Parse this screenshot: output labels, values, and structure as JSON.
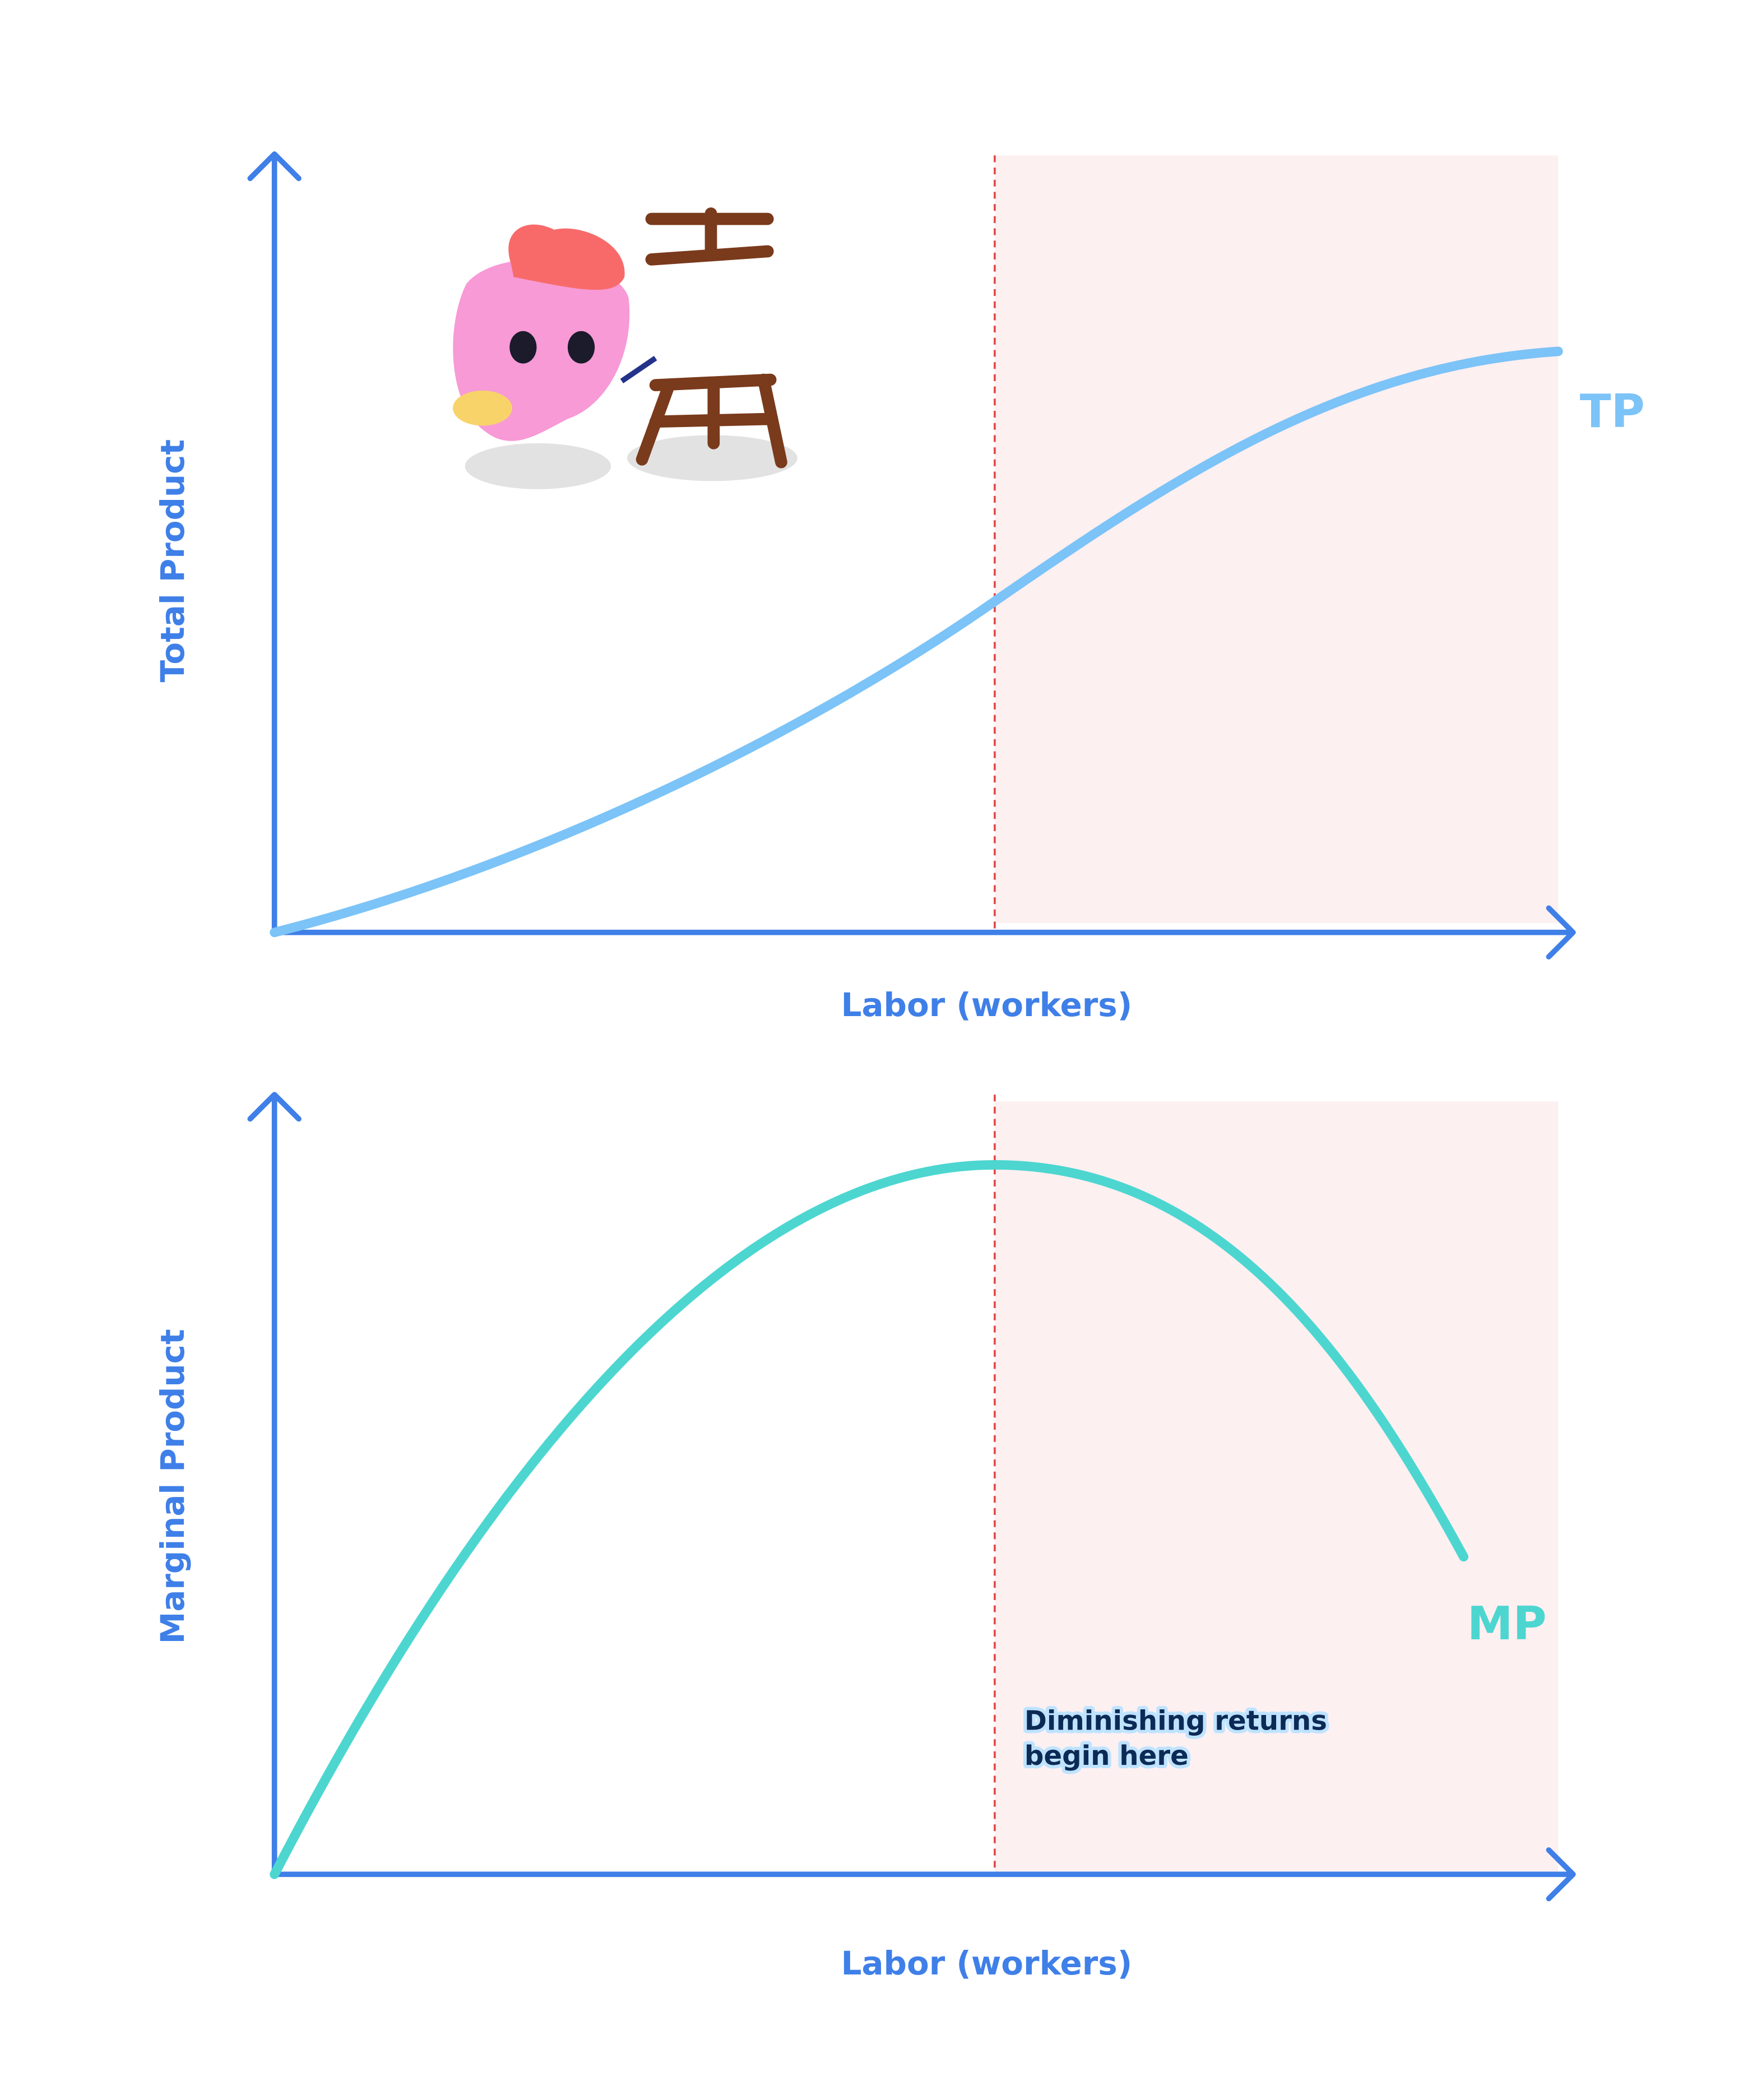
{
  "panels": [
    {
      "y_label": "Total Product",
      "x_label": "Labor (workers)",
      "curve_label": "TP"
    },
    {
      "y_label": "Marginal Product",
      "x_label": "Labor (workers)",
      "curve_label": "MP"
    }
  ],
  "annotation": [
    "Diminishing returns",
    "begin here"
  ]
}
